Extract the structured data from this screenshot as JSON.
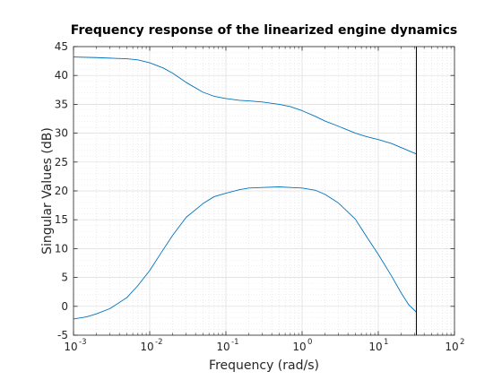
{
  "chart_data": {
    "type": "line",
    "title": "Frequency response of the linearized engine dynamics",
    "xlabel": "Frequency (rad/s)",
    "ylabel": "Singular Values (dB)",
    "xscale": "log",
    "xlim": [
      0.001,
      100
    ],
    "ylim": [
      -5,
      45
    ],
    "x_ticks": [
      {
        "value": 0.001,
        "base": "10",
        "exp": "-3"
      },
      {
        "value": 0.01,
        "base": "10",
        "exp": "-2"
      },
      {
        "value": 0.1,
        "base": "10",
        "exp": "-1"
      },
      {
        "value": 1,
        "base": "10",
        "exp": "0"
      },
      {
        "value": 10,
        "base": "10",
        "exp": "1"
      },
      {
        "value": 100,
        "base": "10",
        "exp": "2"
      }
    ],
    "y_ticks": [
      -5,
      0,
      5,
      10,
      15,
      20,
      25,
      30,
      35,
      40,
      45
    ],
    "grid": true,
    "minor_grid": true,
    "vertical_line_x": 31.6,
    "line_color": "#0072bd",
    "series": [
      {
        "x": [
          0.001,
          0.002,
          0.003,
          0.005,
          0.007,
          0.01,
          0.015,
          0.02,
          0.03,
          0.05,
          0.07,
          0.1,
          0.15,
          0.2,
          0.3,
          0.5,
          0.7,
          1,
          1.5,
          2,
          3,
          5,
          7,
          10,
          15,
          20,
          31.6
        ],
        "values": [
          43.2,
          43.1,
          43.0,
          42.9,
          42.7,
          42.2,
          41.3,
          40.4,
          38.8,
          37.1,
          36.4,
          36.0,
          35.7,
          35.6,
          35.4,
          35.0,
          34.6,
          33.9,
          32.9,
          32.1,
          31.2,
          30.0,
          29.4,
          28.9,
          28.2,
          27.5,
          26.4
        ]
      },
      {
        "x": [
          0.001,
          0.0015,
          0.002,
          0.003,
          0.005,
          0.007,
          0.01,
          0.015,
          0.02,
          0.03,
          0.05,
          0.07,
          0.1,
          0.15,
          0.2,
          0.3,
          0.5,
          0.7,
          1,
          1.5,
          2,
          3,
          5,
          7,
          10,
          15,
          20,
          25,
          31.6
        ],
        "values": [
          -2.2,
          -1.8,
          -1.3,
          -0.4,
          1.5,
          3.6,
          6.2,
          9.8,
          12.3,
          15.4,
          17.8,
          19.0,
          19.6,
          20.2,
          20.5,
          20.6,
          20.7,
          20.6,
          20.5,
          20.1,
          19.4,
          17.9,
          15.1,
          12.1,
          9.0,
          5.2,
          2.3,
          0.3,
          -1.0
        ]
      }
    ]
  }
}
